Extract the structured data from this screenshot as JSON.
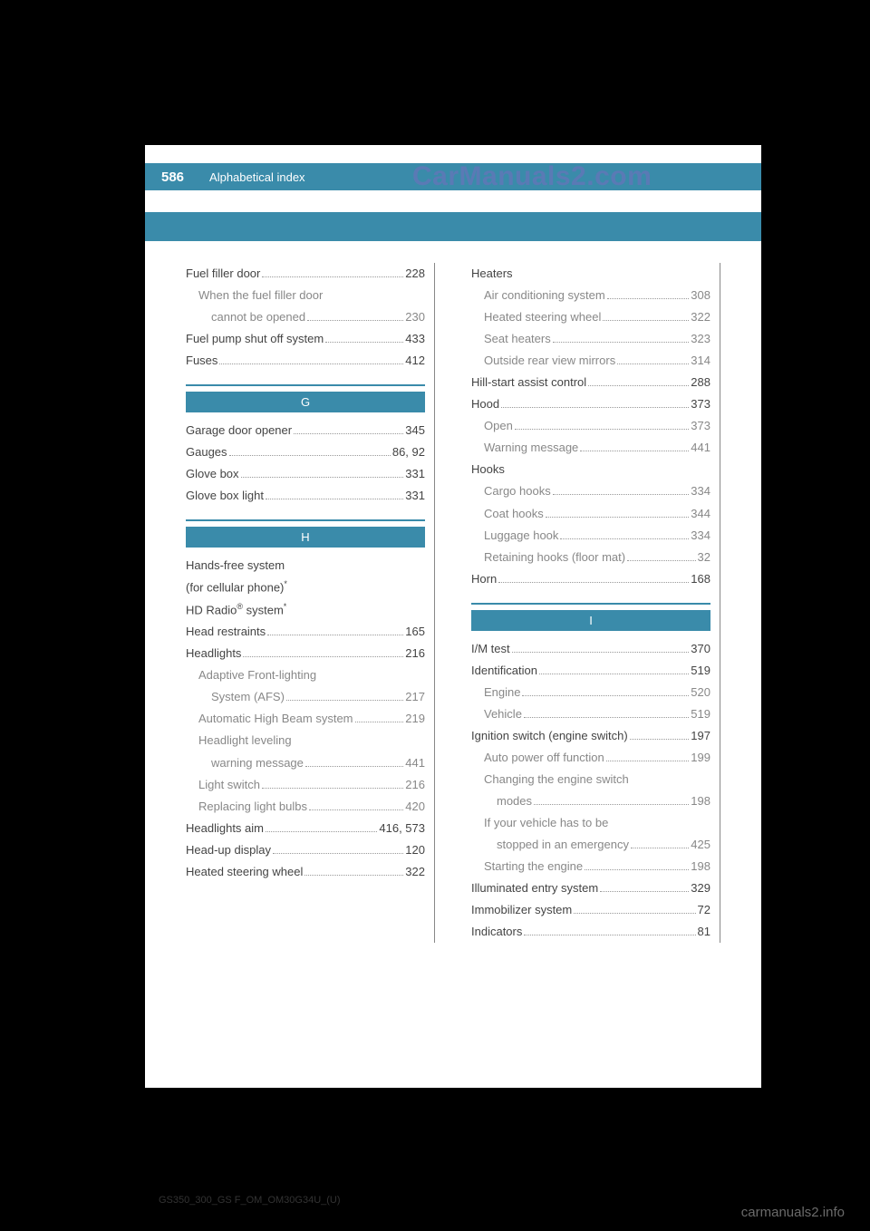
{
  "header": {
    "page_number": "586",
    "section_title": "Alphabetical index"
  },
  "watermark": "CarManuals2.com",
  "doc_code": "GS350_300_GS F_OM_OM30G34U_(U)",
  "footer_link": "carmanuals2.info",
  "colors": {
    "header_bg": "#3a8baa",
    "page_bg": "#ffffff",
    "outer_bg": "#000000",
    "text_primary": "#444444",
    "text_sub": "#888888",
    "watermark_color": "#5a7ab5"
  },
  "left_column": [
    {
      "type": "entry",
      "level": 0,
      "label": "Fuel filler door",
      "page": "228"
    },
    {
      "type": "entry",
      "level": 1,
      "label": "When the fuel filler door",
      "page": ""
    },
    {
      "type": "entry",
      "level": 2,
      "label": "cannot be opened",
      "page": "230"
    },
    {
      "type": "entry",
      "level": 0,
      "label": "Fuel pump shut off system",
      "page": "433"
    },
    {
      "type": "entry",
      "level": 0,
      "label": "Fuses",
      "page": "412"
    },
    {
      "type": "section",
      "label": "G"
    },
    {
      "type": "entry",
      "level": 0,
      "label": "Garage door opener",
      "page": "345"
    },
    {
      "type": "entry",
      "level": 0,
      "label": "Gauges",
      "page": "86, 92"
    },
    {
      "type": "entry",
      "level": 0,
      "label": "Glove box",
      "page": "331"
    },
    {
      "type": "entry",
      "level": 0,
      "label": "Glove box light",
      "page": "331"
    },
    {
      "type": "section",
      "label": "H"
    },
    {
      "type": "entry",
      "level": 0,
      "label": "Hands-free system",
      "page": ""
    },
    {
      "type": "entry",
      "level": 0,
      "label": "  (for cellular phone)*",
      "page": "",
      "star": true
    },
    {
      "type": "entry",
      "level": 0,
      "label": "HD Radio® system*",
      "page": "",
      "star": true,
      "reg": true
    },
    {
      "type": "entry",
      "level": 0,
      "label": "Head restraints",
      "page": "165"
    },
    {
      "type": "entry",
      "level": 0,
      "label": "Headlights",
      "page": "216"
    },
    {
      "type": "entry",
      "level": 1,
      "label": "Adaptive Front-lighting",
      "page": ""
    },
    {
      "type": "entry",
      "level": 2,
      "label": "System (AFS)",
      "page": "217"
    },
    {
      "type": "entry",
      "level": 1,
      "label": "Automatic High Beam system",
      "page": "219"
    },
    {
      "type": "entry",
      "level": 1,
      "label": "Headlight leveling",
      "page": ""
    },
    {
      "type": "entry",
      "level": 2,
      "label": "warning message",
      "page": "441"
    },
    {
      "type": "entry",
      "level": 1,
      "label": "Light switch",
      "page": "216"
    },
    {
      "type": "entry",
      "level": 1,
      "label": "Replacing light bulbs",
      "page": "420"
    },
    {
      "type": "entry",
      "level": 0,
      "label": "Headlights aim",
      "page": "416, 573"
    },
    {
      "type": "entry",
      "level": 0,
      "label": "Head-up display",
      "page": "120"
    },
    {
      "type": "entry",
      "level": 0,
      "label": "Heated steering wheel",
      "page": "322"
    }
  ],
  "right_column": [
    {
      "type": "entry",
      "level": 0,
      "label": "Heaters",
      "page": ""
    },
    {
      "type": "entry",
      "level": 1,
      "label": "Air conditioning system",
      "page": "308"
    },
    {
      "type": "entry",
      "level": 1,
      "label": "Heated steering wheel",
      "page": "322"
    },
    {
      "type": "entry",
      "level": 1,
      "label": "Seat heaters",
      "page": "323"
    },
    {
      "type": "entry",
      "level": 1,
      "label": "Outside rear view mirrors",
      "page": "314"
    },
    {
      "type": "entry",
      "level": 0,
      "label": "Hill-start assist control",
      "page": "288"
    },
    {
      "type": "entry",
      "level": 0,
      "label": "Hood",
      "page": "373"
    },
    {
      "type": "entry",
      "level": 1,
      "label": "Open",
      "page": "373"
    },
    {
      "type": "entry",
      "level": 1,
      "label": "Warning message",
      "page": "441"
    },
    {
      "type": "entry",
      "level": 0,
      "label": "Hooks",
      "page": ""
    },
    {
      "type": "entry",
      "level": 1,
      "label": "Cargo hooks",
      "page": "334"
    },
    {
      "type": "entry",
      "level": 1,
      "label": "Coat hooks",
      "page": "344"
    },
    {
      "type": "entry",
      "level": 1,
      "label": "Luggage hook",
      "page": "334"
    },
    {
      "type": "entry",
      "level": 1,
      "label": "Retaining hooks (floor mat)",
      "page": "32"
    },
    {
      "type": "entry",
      "level": 0,
      "label": "Horn",
      "page": "168"
    },
    {
      "type": "section",
      "label": "I"
    },
    {
      "type": "entry",
      "level": 0,
      "label": "I/M test",
      "page": "370"
    },
    {
      "type": "entry",
      "level": 0,
      "label": "Identification",
      "page": "519"
    },
    {
      "type": "entry",
      "level": 1,
      "label": "Engine",
      "page": "520"
    },
    {
      "type": "entry",
      "level": 1,
      "label": "Vehicle",
      "page": "519"
    },
    {
      "type": "entry",
      "level": 0,
      "label": "Ignition switch (engine switch)",
      "page": "197"
    },
    {
      "type": "entry",
      "level": 1,
      "label": "Auto power off function",
      "page": "199"
    },
    {
      "type": "entry",
      "level": 1,
      "label": "Changing the engine switch",
      "page": ""
    },
    {
      "type": "entry",
      "level": 2,
      "label": "modes",
      "page": "198"
    },
    {
      "type": "entry",
      "level": 1,
      "label": "If your vehicle has to be",
      "page": ""
    },
    {
      "type": "entry",
      "level": 2,
      "label": "stopped in an emergency",
      "page": "425"
    },
    {
      "type": "entry",
      "level": 1,
      "label": "Starting the engine",
      "page": "198"
    },
    {
      "type": "entry",
      "level": 0,
      "label": "Illuminated entry system",
      "page": "329"
    },
    {
      "type": "entry",
      "level": 0,
      "label": "Immobilizer system",
      "page": "72"
    },
    {
      "type": "entry",
      "level": 0,
      "label": "Indicators",
      "page": "81"
    }
  ]
}
